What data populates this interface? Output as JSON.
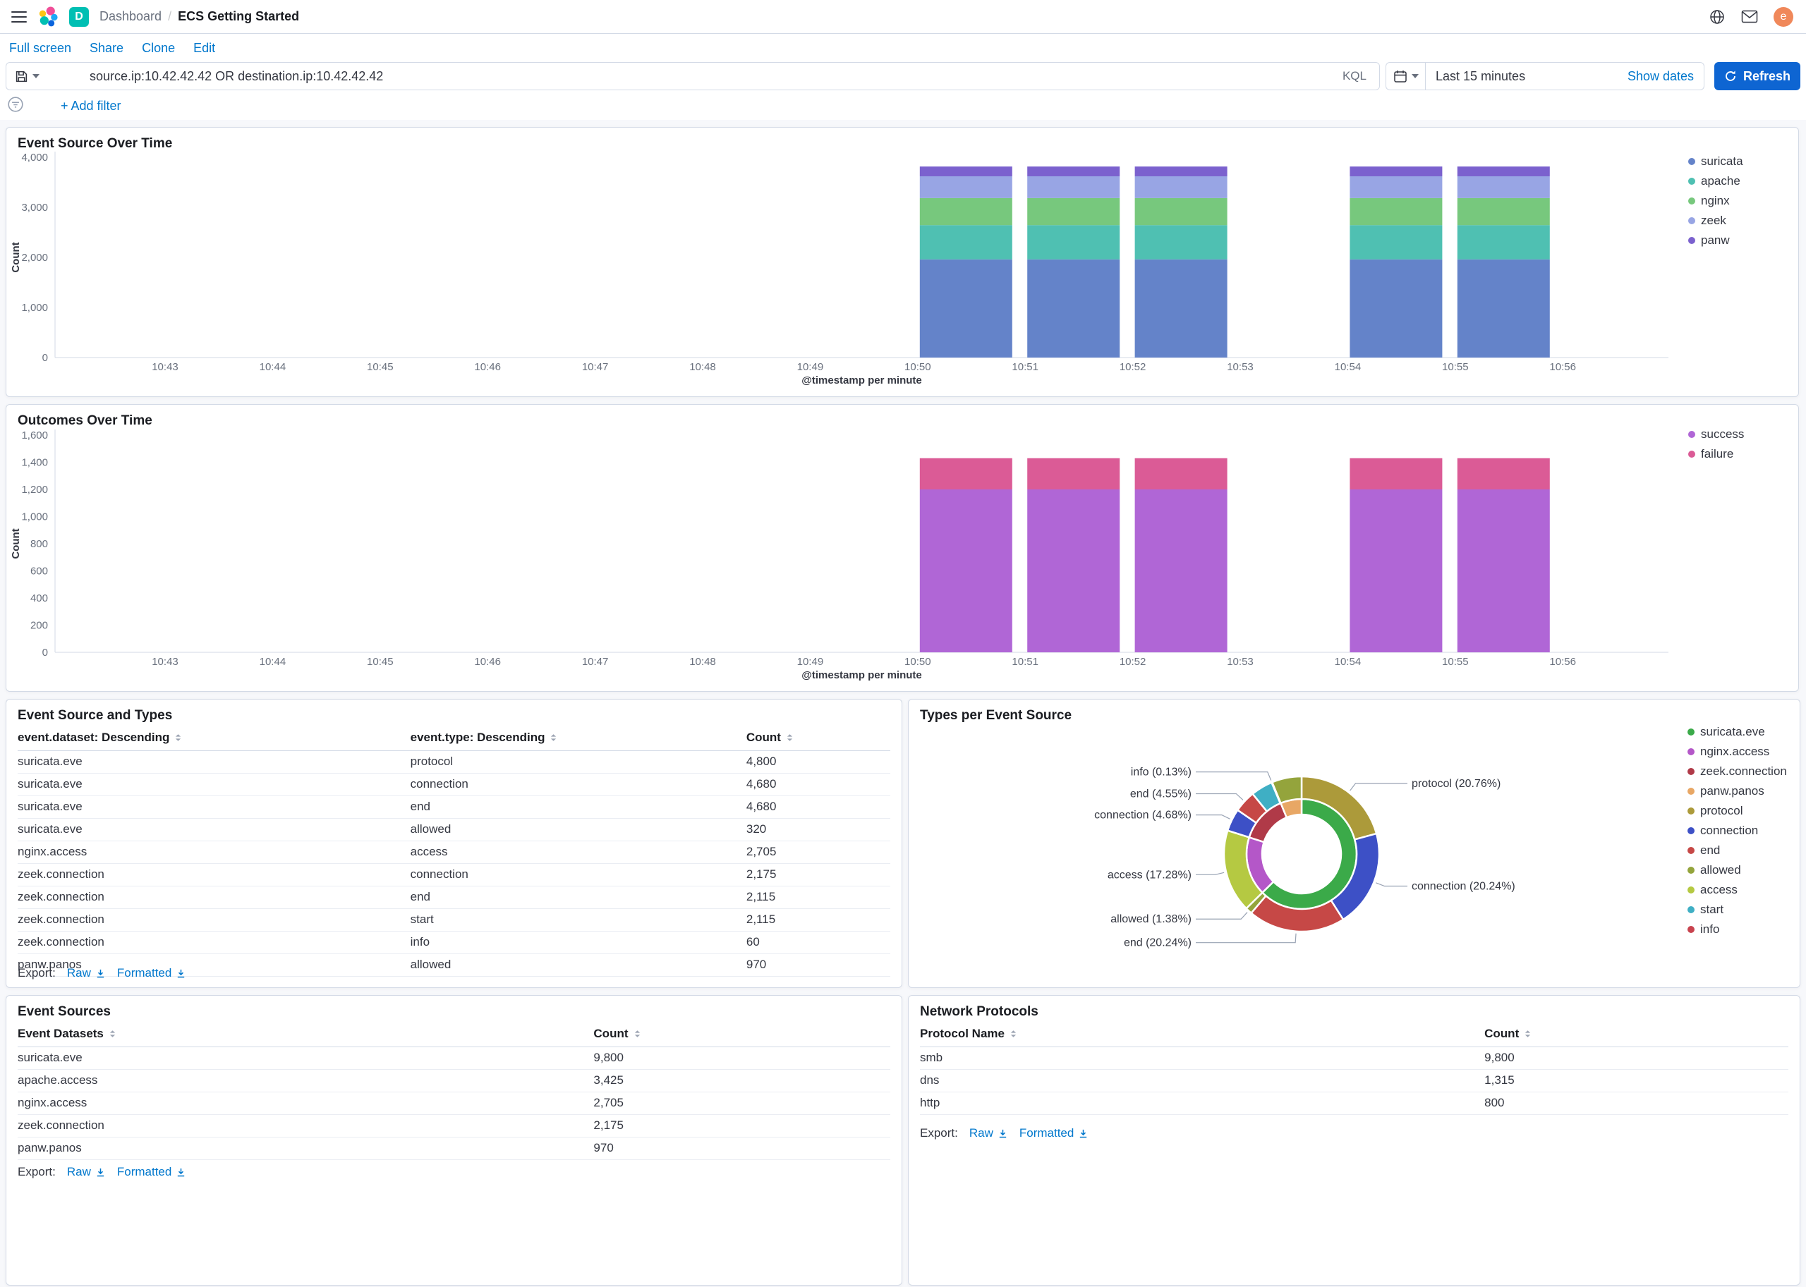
{
  "header": {
    "breadcrumbs": {
      "section": "Dashboard",
      "separator": "/",
      "current": "ECS Getting Started"
    },
    "space_initial": "D",
    "avatar_initial": "e"
  },
  "toolbar": {
    "full_screen": "Full screen",
    "share": "Share",
    "clone": "Clone",
    "edit": "Edit"
  },
  "query_bar": {
    "query": "source.ip:10.42.42.42 OR destination.ip:10.42.42.42",
    "language": "KQL",
    "time_range": "Last 15 minutes",
    "show_dates_label": "Show dates",
    "refresh_label": "Refresh"
  },
  "filter_bar": {
    "add_filter_label": "+ Add filter"
  },
  "export_labels": {
    "prefix": "Export:",
    "raw": "Raw",
    "formatted": "Formatted"
  },
  "panels": {
    "event_source_over_time": {
      "title": "Event Source Over Time"
    },
    "outcomes_over_time": {
      "title": "Outcomes Over Time"
    },
    "event_source_and_types": {
      "title": "Event Source and Types",
      "table": {
        "headers": [
          "event.dataset: Descending",
          "event.type: Descending",
          "Count"
        ],
        "rows": [
          [
            "suricata.eve",
            "protocol",
            "4,800"
          ],
          [
            "suricata.eve",
            "connection",
            "4,680"
          ],
          [
            "suricata.eve",
            "end",
            "4,680"
          ],
          [
            "suricata.eve",
            "allowed",
            "320"
          ],
          [
            "nginx.access",
            "access",
            "2,705"
          ],
          [
            "zeek.connection",
            "connection",
            "2,175"
          ],
          [
            "zeek.connection",
            "end",
            "2,115"
          ],
          [
            "zeek.connection",
            "start",
            "2,115"
          ],
          [
            "zeek.connection",
            "info",
            "60"
          ],
          [
            "panw.panos",
            "allowed",
            "970"
          ]
        ]
      }
    },
    "types_per_event_source": {
      "title": "Types per Event Source"
    },
    "event_sources": {
      "title": "Event Sources",
      "table": {
        "headers": [
          "Event Datasets",
          "Count"
        ],
        "rows": [
          [
            "suricata.eve",
            "9,800"
          ],
          [
            "apache.access",
            "3,425"
          ],
          [
            "nginx.access",
            "2,705"
          ],
          [
            "zeek.connection",
            "2,175"
          ],
          [
            "panw.panos",
            "970"
          ]
        ]
      }
    },
    "network_protocols": {
      "title": "Network Protocols",
      "table": {
        "headers": [
          "Protocol Name",
          "Count"
        ],
        "rows": [
          [
            "smb",
            "9,800"
          ],
          [
            "dns",
            "1,315"
          ],
          [
            "http",
            "800"
          ]
        ]
      }
    }
  },
  "chart_data": [
    {
      "type": "bar",
      "title": "Event Source Over Time",
      "stacked": true,
      "xlabel": "@timestamp per minute",
      "ylabel": "Count",
      "ylim": [
        0,
        4000
      ],
      "y_ticks": [
        "0",
        "1,000",
        "2,000",
        "3,000",
        "4,000"
      ],
      "x_ticks": [
        "10:43",
        "10:44",
        "10:45",
        "10:46",
        "10:47",
        "10:48",
        "10:49",
        "10:50",
        "10:51",
        "10:52",
        "10:53",
        "10:54",
        "10:55",
        "10:56"
      ],
      "bar_buckets": [
        "10:50",
        "10:51",
        "10:52",
        "10:54",
        "10:55"
      ],
      "series": [
        {
          "name": "suricata",
          "color": "#6483C9",
          "values": [
            1960,
            1960,
            1960,
            1960,
            1960
          ]
        },
        {
          "name": "apache",
          "color": "#4FC0B2",
          "values": [
            685,
            685,
            685,
            685,
            685
          ]
        },
        {
          "name": "nginx",
          "color": "#77C87D",
          "values": [
            540,
            540,
            540,
            540,
            540
          ]
        },
        {
          "name": "zeek",
          "color": "#98A5E4",
          "values": [
            435,
            435,
            435,
            435,
            435
          ]
        },
        {
          "name": "panw",
          "color": "#7B61CE",
          "values": [
            195,
            195,
            195,
            195,
            195
          ]
        }
      ],
      "legend_position": "right"
    },
    {
      "type": "bar",
      "title": "Outcomes Over Time",
      "stacked": true,
      "xlabel": "@timestamp per minute",
      "ylabel": "Count",
      "ylim": [
        0,
        1600
      ],
      "y_ticks": [
        "0",
        "200",
        "400",
        "600",
        "800",
        "1,000",
        "1,200",
        "1,400",
        "1,600"
      ],
      "x_ticks": [
        "10:43",
        "10:44",
        "10:45",
        "10:46",
        "10:47",
        "10:48",
        "10:49",
        "10:50",
        "10:51",
        "10:52",
        "10:53",
        "10:54",
        "10:55",
        "10:56"
      ],
      "bar_buckets": [
        "10:50",
        "10:51",
        "10:52",
        "10:54",
        "10:55"
      ],
      "series": [
        {
          "name": "success",
          "color": "#B066D6",
          "values": [
            1200,
            1200,
            1200,
            1200,
            1200
          ]
        },
        {
          "name": "failure",
          "color": "#DB5B96",
          "values": [
            230,
            230,
            230,
            230,
            230
          ]
        }
      ],
      "legend_position": "right"
    },
    {
      "type": "pie",
      "title": "Types per Event Source",
      "rings": "inner = event source, outer = event type",
      "inner_ring": [
        {
          "name": "suricata.eve",
          "color": "#3BAA49",
          "pct": 62.62
        },
        {
          "name": "nginx.access",
          "color": "#B457C8",
          "pct": 17.28
        },
        {
          "name": "zeek.connection",
          "color": "#B03A48",
          "pct": 13.91
        },
        {
          "name": "panw.panos",
          "color": "#E8A765",
          "pct": 6.19
        }
      ],
      "outer_ring": [
        {
          "name": "protocol",
          "color": "#AC9A3A",
          "pct": 20.76,
          "label": "protocol (20.76%)"
        },
        {
          "name": "connection",
          "color": "#3D50C6",
          "pct": 20.24,
          "label": "connection (20.24%)"
        },
        {
          "name": "end",
          "color": "#C64846",
          "pct": 20.24,
          "label": "end (20.24%)"
        },
        {
          "name": "allowed",
          "color": "#94A43C",
          "pct": 1.38,
          "label": "allowed (1.38%)"
        },
        {
          "name": "access",
          "color": "#B5C942",
          "pct": 17.28,
          "label": "access (17.28%)"
        },
        {
          "name": "connection",
          "color": "#3D50C6",
          "pct": 4.68,
          "label": "connection (4.68%)"
        },
        {
          "name": "end",
          "color": "#C64846",
          "pct": 4.55,
          "label": "end (4.55%)"
        },
        {
          "name": "start",
          "color": "#3FAFC4",
          "pct": 4.55,
          "label": null
        },
        {
          "name": "info",
          "color": "#C8434E",
          "pct": 0.13,
          "label": "info (0.13%)"
        },
        {
          "name": "allowed",
          "color": "#94A43C",
          "pct": 6.19,
          "label": null
        }
      ],
      "legend": [
        {
          "name": "suricata.eve",
          "color": "#3BAA49"
        },
        {
          "name": "nginx.access",
          "color": "#B457C8"
        },
        {
          "name": "zeek.connection",
          "color": "#B03A48"
        },
        {
          "name": "panw.panos",
          "color": "#E8A765"
        },
        {
          "name": "protocol",
          "color": "#AC9A3A"
        },
        {
          "name": "connection",
          "color": "#3D50C6"
        },
        {
          "name": "end",
          "color": "#C64846"
        },
        {
          "name": "allowed",
          "color": "#94A43C"
        },
        {
          "name": "access",
          "color": "#B5C942"
        },
        {
          "name": "start",
          "color": "#3FAFC4"
        },
        {
          "name": "info",
          "color": "#C8434E"
        }
      ]
    }
  ]
}
